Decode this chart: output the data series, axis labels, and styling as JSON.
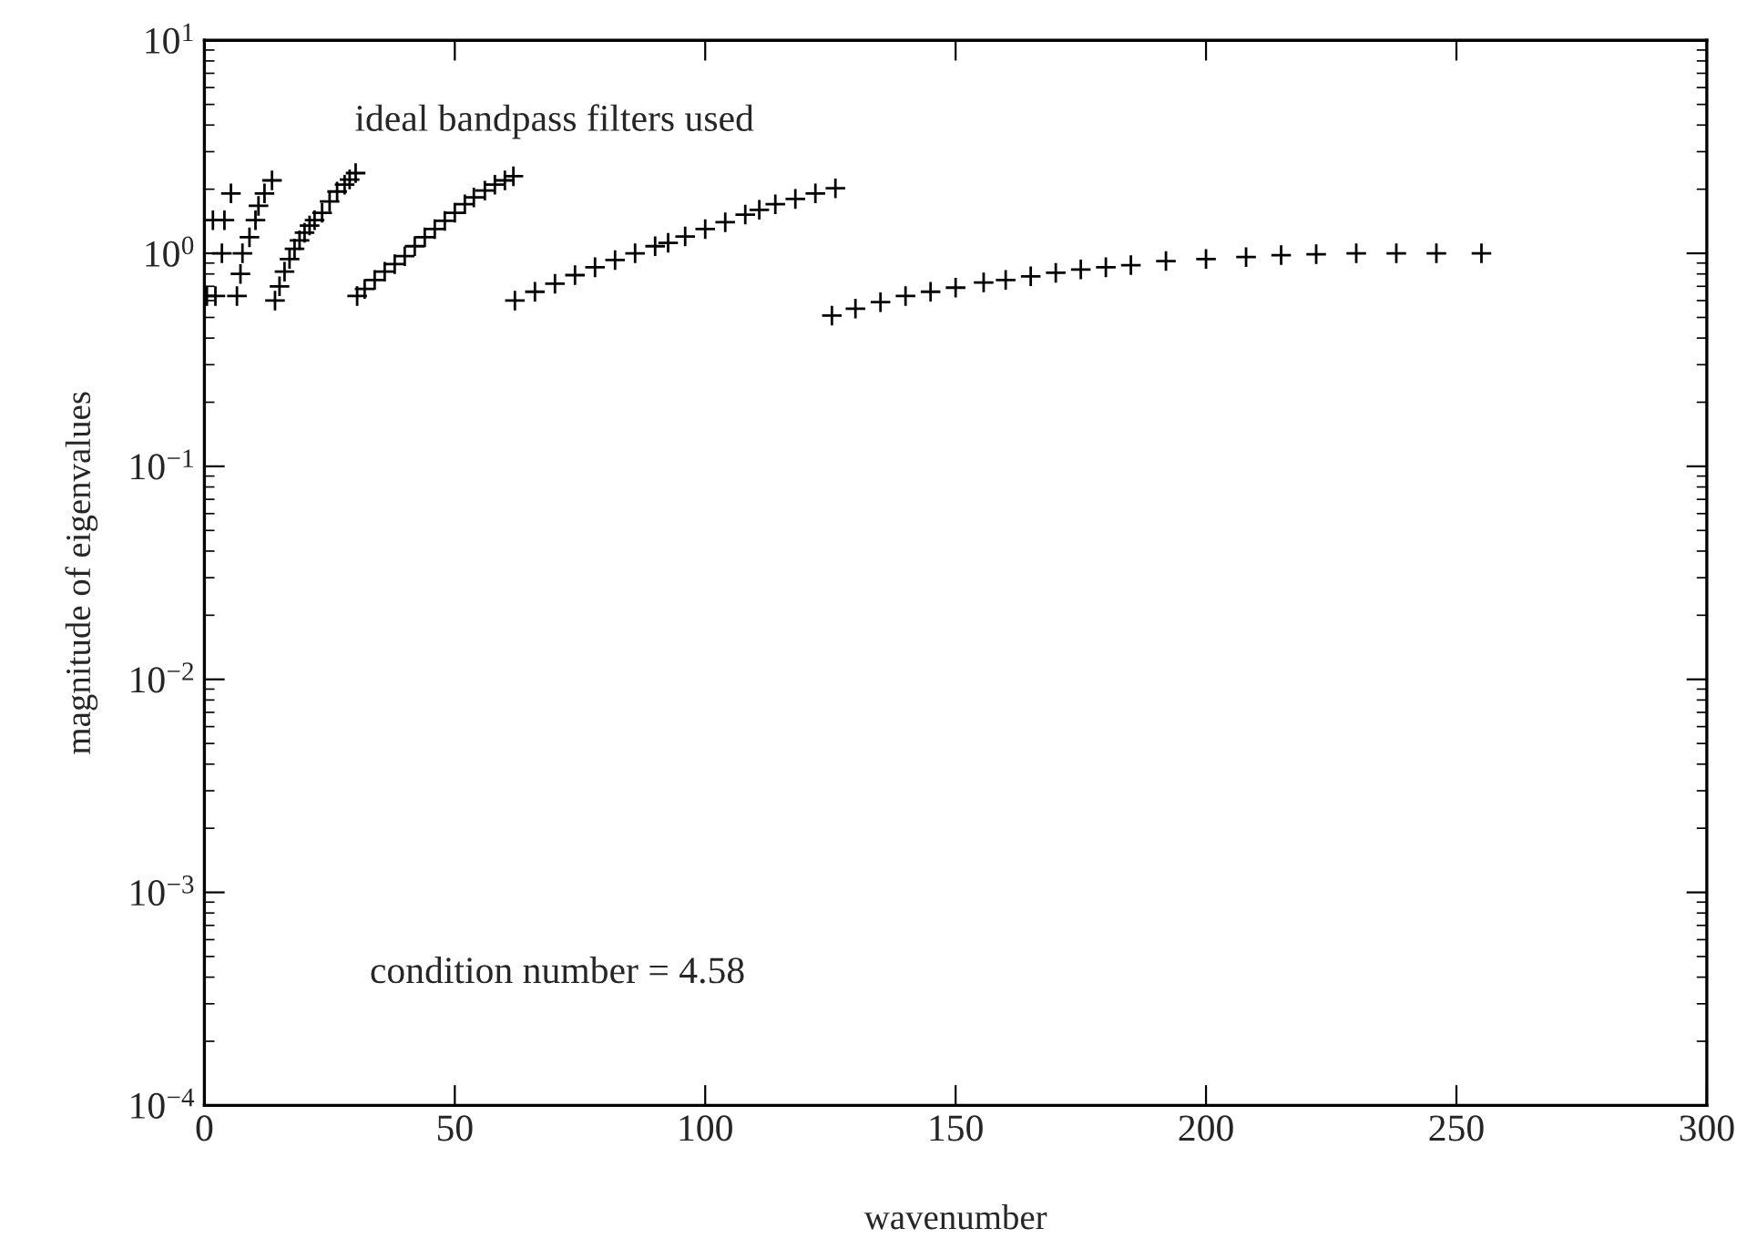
{
  "chart_data": {
    "type": "scatter",
    "xlabel": "wavenumber",
    "ylabel": "magnitude of eigenvalues",
    "annotations": [
      "ideal bandpass filters used",
      "condition number = 4.58"
    ],
    "log": "y",
    "marker": "cross",
    "grid": false,
    "xlim": [
      0,
      300
    ],
    "xticks": [
      0,
      50,
      100,
      150,
      200,
      250,
      300
    ],
    "ylim": [
      0.0001,
      10
    ],
    "yticks": [
      {
        "value": 0.0001,
        "label": "10$^{−4}$"
      },
      {
        "value": 0.001,
        "label": "10$^{−3}$"
      },
      {
        "value": 0.01,
        "label": "10$^{−2}$"
      },
      {
        "value": 0.1,
        "label": "10$^{−1}$"
      },
      {
        "value": 1,
        "label": "10$^{0}$"
      },
      {
        "value": 10,
        "label": "10$^{1}$"
      }
    ],
    "series": [
      {
        "color": "#000000",
        "x": [
          0.5,
          1.7,
          2.2,
          3.5,
          4,
          5.3,
          6.5
        ],
        "values": [
          0.63,
          1.43,
          0.63,
          1.0,
          1.43,
          1.91,
          0.63
        ]
      },
      {
        "color": "#000000",
        "x": [
          7.2,
          7.6,
          9,
          10.2,
          10.8,
          12,
          13.5
        ],
        "values": [
          0.8,
          1.0,
          1.19,
          1.43,
          1.67,
          1.91,
          2.2
        ]
      },
      {
        "color": "#000000",
        "x": [
          14.1,
          15,
          16,
          17,
          18,
          19,
          20,
          21,
          22,
          23.5,
          25,
          26.5,
          28,
          29,
          30.2
        ],
        "values": [
          0.6,
          0.7,
          0.82,
          0.94,
          1.05,
          1.15,
          1.25,
          1.35,
          1.43,
          1.55,
          1.75,
          1.95,
          2.1,
          2.22,
          2.38
        ]
      },
      {
        "color": "#000000",
        "x": [
          30.5,
          32,
          34,
          36,
          38,
          40,
          42,
          44,
          46,
          48,
          50,
          52,
          53.8,
          56,
          58,
          60,
          61.7
        ],
        "values": [
          0.63,
          0.68,
          0.75,
          0.82,
          0.89,
          0.97,
          1.08,
          1.19,
          1.3,
          1.42,
          1.55,
          1.7,
          1.83,
          1.97,
          2.1,
          2.2,
          2.3
        ]
      },
      {
        "color": "#000000",
        "x": [
          62,
          66,
          70,
          74,
          78,
          82,
          86,
          90,
          92.6,
          96,
          100,
          104,
          108,
          110.8,
          114,
          118,
          122,
          126
        ],
        "values": [
          0.6,
          0.66,
          0.72,
          0.79,
          0.86,
          0.93,
          1.0,
          1.08,
          1.12,
          1.2,
          1.3,
          1.4,
          1.52,
          1.6,
          1.7,
          1.8,
          1.91,
          2.02
        ]
      },
      {
        "color": "#000000",
        "x": [
          125.3,
          130,
          135,
          140,
          145,
          150,
          155.6,
          160,
          165,
          170,
          175,
          180,
          185,
          192,
          200,
          208,
          215,
          222,
          230,
          238,
          246,
          255
        ],
        "values": [
          0.51,
          0.55,
          0.59,
          0.63,
          0.66,
          0.69,
          0.73,
          0.75,
          0.78,
          0.81,
          0.84,
          0.86,
          0.88,
          0.92,
          0.94,
          0.96,
          0.98,
          0.99,
          1.0,
          1.0,
          1.0,
          1.0
        ]
      }
    ]
  }
}
